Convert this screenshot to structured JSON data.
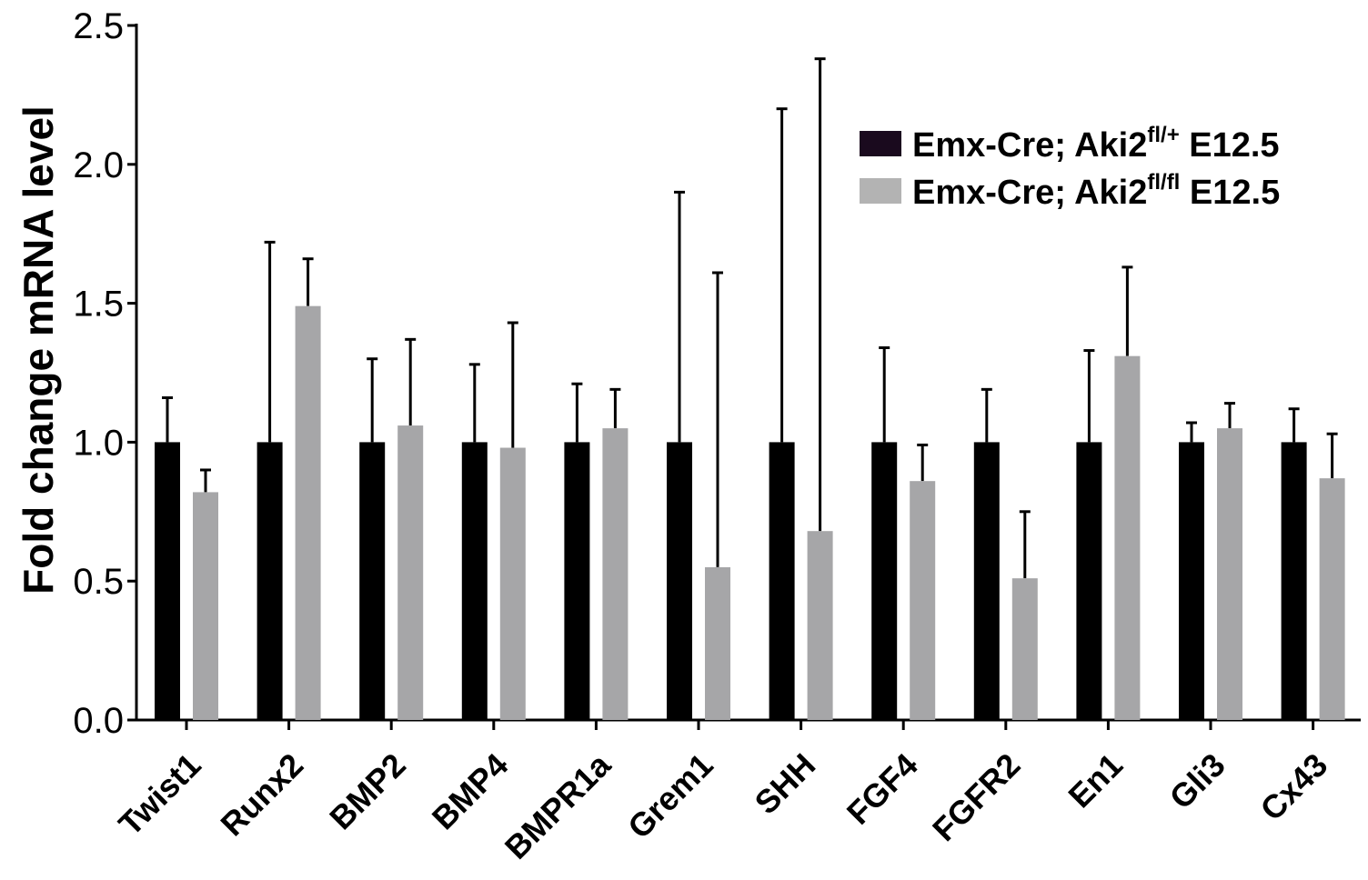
{
  "chart_data": {
    "type": "bar",
    "title": "",
    "xlabel": "",
    "ylabel": "Fold change mRNA level",
    "ylim": [
      0,
      2.5
    ],
    "yticks": [
      "0.0",
      "0.5",
      "1.0",
      "1.5",
      "2.0",
      "2.5"
    ],
    "categories": [
      "Twist1",
      "Runx2",
      "BMP2",
      "BMP4",
      "BMPR1a",
      "Grem1",
      "SHH",
      "FGF4",
      "FGFR2",
      "En1",
      "Gli3",
      "Cx43"
    ],
    "grid": false,
    "legend_position": "top-right",
    "series": [
      {
        "name": "Emx-Cre; Aki2fl/+ E12.5",
        "name_base": "Emx-Cre; Aki2",
        "name_sup": "fl/+",
        "name_tail": " E12.5",
        "color": "#000000",
        "legend_color": "#1a0a1e",
        "values": [
          1.0,
          1.0,
          1.0,
          1.0,
          1.0,
          1.0,
          1.0,
          1.0,
          1.0,
          1.0,
          1.0,
          1.0
        ],
        "errors": [
          0.16,
          0.72,
          0.3,
          0.28,
          0.21,
          0.9,
          1.2,
          0.34,
          0.19,
          0.33,
          0.07,
          0.12
        ]
      },
      {
        "name": "Emx-Cre; Aki2fl/fl E12.5",
        "name_base": "Emx-Cre; Aki2",
        "name_sup": "fl/fl",
        "name_tail": " E12.5",
        "color": "#a6a6a8",
        "legend_color": "#b3b3b3",
        "values": [
          0.82,
          1.49,
          1.06,
          0.98,
          1.05,
          0.55,
          0.68,
          0.86,
          0.51,
          1.31,
          1.05,
          0.87
        ],
        "errors": [
          0.08,
          0.17,
          0.31,
          0.45,
          0.14,
          1.06,
          1.7,
          0.13,
          0.24,
          0.32,
          0.09,
          0.16
        ]
      }
    ]
  }
}
